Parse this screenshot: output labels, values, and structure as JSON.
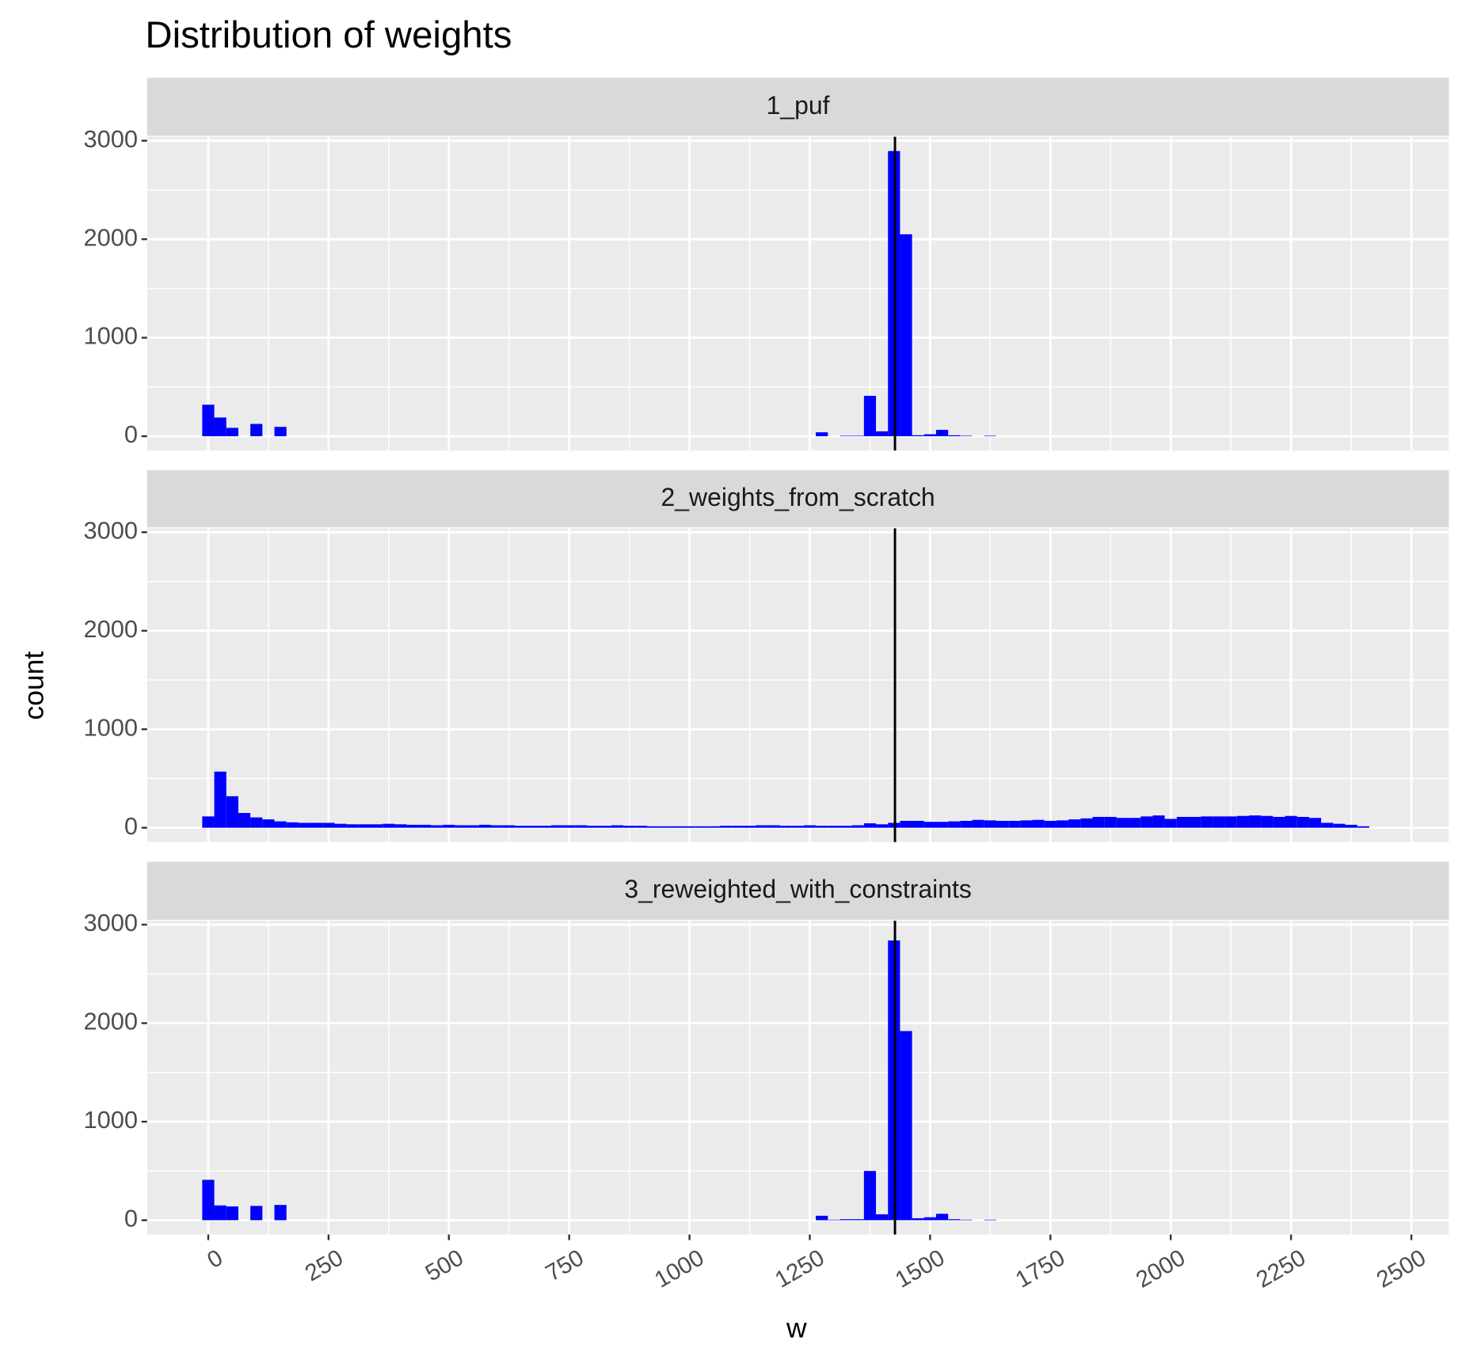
{
  "chart_data": {
    "type": "histogram",
    "title": "Distribution of weights",
    "x_label": "w",
    "y_label": "count",
    "bins": [
      -12.5,
      12.5,
      37.5,
      62.5,
      87.5,
      112.5,
      137.5,
      162.5,
      187.5,
      212.5,
      237.5,
      262.5,
      287.5,
      312.5,
      337.5,
      362.5,
      387.5,
      412.5,
      437.5,
      462.5,
      487.5,
      512.5,
      537.5,
      562.5,
      587.5,
      612.5,
      637.5,
      662.5,
      687.5,
      712.5,
      737.5,
      762.5,
      787.5,
      812.5,
      837.5,
      862.5,
      887.5,
      912.5,
      937.5,
      962.5,
      987.5,
      1012.5,
      1037.5,
      1062.5,
      1087.5,
      1112.5,
      1137.5,
      1162.5,
      1187.5,
      1212.5,
      1237.5,
      1262.5,
      1287.5,
      1312.5,
      1337.5,
      1362.5,
      1387.5,
      1412.5,
      1437.5,
      1462.5,
      1487.5,
      1512.5,
      1537.5,
      1562.5,
      1587.5,
      1612.5,
      1637.5,
      1662.5,
      1687.5,
      1712.5,
      1737.5,
      1762.5,
      1787.5,
      1812.5,
      1837.5,
      1862.5,
      1887.5,
      1912.5,
      1937.5,
      1962.5,
      1987.5,
      2012.5,
      2037.5,
      2062.5,
      2087.5,
      2112.5,
      2137.5,
      2162.5,
      2187.5,
      2212.5,
      2237.5,
      2262.5,
      2287.5,
      2312.5,
      2337.5,
      2362.5,
      2387.5,
      2412.5
    ],
    "series": [
      {
        "name": "1_puf",
        "color": "#0000ff",
        "values": [
          320,
          190,
          85,
          0,
          125,
          0,
          95,
          0,
          0,
          0,
          0,
          0,
          0,
          0,
          0,
          0,
          0,
          0,
          0,
          0,
          0,
          0,
          0,
          0,
          0,
          0,
          0,
          0,
          0,
          0,
          0,
          0,
          0,
          0,
          0,
          0,
          0,
          0,
          0,
          0,
          0,
          0,
          0,
          0,
          0,
          0,
          0,
          0,
          0,
          0,
          0,
          40,
          0,
          5,
          5,
          410,
          50,
          2895,
          2050,
          10,
          20,
          65,
          10,
          5,
          0,
          5,
          0,
          0,
          0,
          0,
          0,
          0,
          0,
          0,
          0,
          0,
          0,
          0,
          0,
          0,
          0,
          0,
          0,
          0,
          0,
          0,
          0,
          0,
          0,
          0,
          0,
          0,
          0,
          0,
          0,
          0,
          0
        ]
      },
      {
        "name": "2_weights_from_scratch",
        "color": "#0000ff",
        "values": [
          115,
          570,
          320,
          150,
          105,
          85,
          65,
          55,
          50,
          50,
          50,
          40,
          35,
          35,
          35,
          40,
          35,
          30,
          30,
          25,
          30,
          25,
          25,
          30,
          25,
          25,
          20,
          20,
          20,
          25,
          25,
          25,
          20,
          20,
          25,
          20,
          20,
          15,
          15,
          15,
          15,
          15,
          15,
          20,
          20,
          20,
          25,
          25,
          20,
          20,
          25,
          20,
          20,
          20,
          25,
          45,
          35,
          50,
          70,
          70,
          60,
          60,
          65,
          70,
          80,
          75,
          70,
          70,
          75,
          80,
          70,
          75,
          85,
          95,
          110,
          110,
          100,
          100,
          115,
          125,
          90,
          110,
          110,
          115,
          115,
          115,
          120,
          125,
          120,
          110,
          120,
          110,
          100,
          50,
          40,
          30,
          15
        ]
      },
      {
        "name": "3_reweighted_with_constraints",
        "color": "#0000ff",
        "values": [
          410,
          150,
          140,
          0,
          145,
          0,
          155,
          0,
          0,
          0,
          0,
          0,
          0,
          0,
          0,
          0,
          0,
          0,
          0,
          0,
          0,
          0,
          0,
          0,
          0,
          0,
          0,
          0,
          0,
          0,
          0,
          0,
          0,
          0,
          0,
          0,
          0,
          0,
          0,
          0,
          0,
          0,
          0,
          0,
          0,
          0,
          0,
          0,
          0,
          0,
          0,
          45,
          5,
          10,
          10,
          500,
          60,
          2840,
          1920,
          20,
          30,
          65,
          10,
          5,
          0,
          5,
          0,
          0,
          0,
          0,
          0,
          0,
          0,
          0,
          0,
          0,
          0,
          0,
          0,
          0,
          0,
          0,
          0,
          0,
          0,
          0,
          0,
          0,
          0,
          0,
          0,
          0,
          0,
          0,
          0,
          0,
          0
        ]
      }
    ],
    "vline": 1427,
    "xlim": [
      -127,
      2578
    ],
    "xticks": [
      0,
      250,
      500,
      750,
      1000,
      1250,
      1500,
      1750,
      2000,
      2250,
      2500
    ],
    "ylim": [
      -145,
      3040
    ],
    "yticks": [
      0,
      1000,
      2000,
      3000
    ],
    "grid": true
  }
}
